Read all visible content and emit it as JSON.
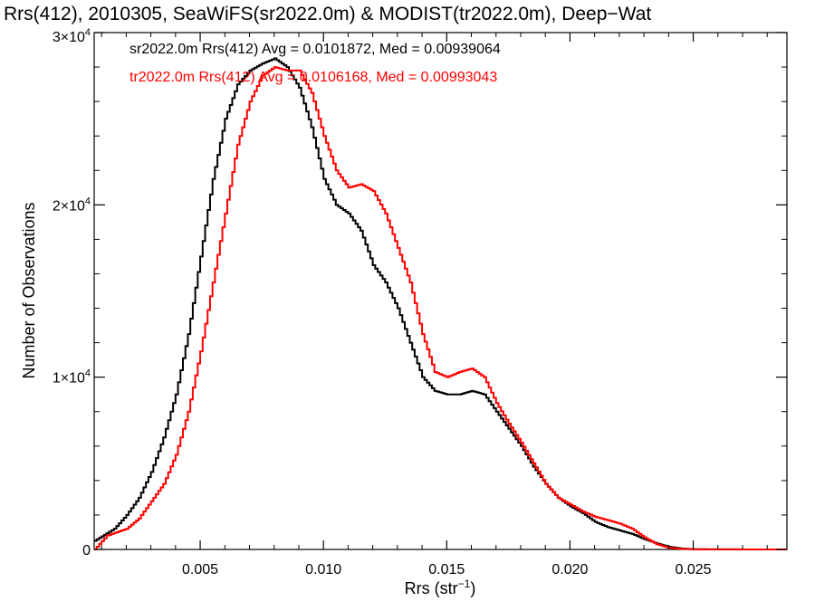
{
  "chart_data": {
    "type": "line",
    "style": "step",
    "title": "Rrs(412), 2010305, SeaWiFS(sr2022.0m) & MODIST(tr2022.0m), Deep−Wat",
    "xlabel": "Rrs (str",
    "xlabel_sup": "−1",
    "xlabel_end": ")",
    "ylabel": "Number of Observations",
    "xlim": [
      0.0007,
      0.0288
    ],
    "ylim": [
      0,
      30000
    ],
    "grid": false,
    "x_ticks": [
      {
        "value": 0.005,
        "label": "0.005"
      },
      {
        "value": 0.01,
        "label": "0.010"
      },
      {
        "value": 0.015,
        "label": "0.015"
      },
      {
        "value": 0.02,
        "label": "0.020"
      },
      {
        "value": 0.025,
        "label": "0.025"
      }
    ],
    "y_ticks": [
      {
        "value": 0,
        "label": "0",
        "sup": ""
      },
      {
        "value": 10000,
        "label": "1×10",
        "sup": "4"
      },
      {
        "value": 20000,
        "label": "2×10",
        "sup": "4"
      },
      {
        "value": 30000,
        "label": "3×10",
        "sup": "4"
      }
    ],
    "annotations": [
      {
        "text": "sr2022.0m Rrs(412) Avg = 0.0101872, Med = 0.00939064",
        "color": "#000000"
      },
      {
        "text": "tr2022.0m Rrs(412) Avg = 0.0106168, Med = 0.00993043",
        "color": "#ff0000"
      }
    ],
    "series": [
      {
        "color": "#000000",
        "points": [
          [
            0.0007,
            500
          ],
          [
            0.0015,
            1200
          ],
          [
            0.002,
            2000
          ],
          [
            0.0025,
            3000
          ],
          [
            0.003,
            4500
          ],
          [
            0.0035,
            6500
          ],
          [
            0.004,
            9000
          ],
          [
            0.0045,
            12500
          ],
          [
            0.005,
            17000
          ],
          [
            0.0055,
            21500
          ],
          [
            0.006,
            25000
          ],
          [
            0.0065,
            27000
          ],
          [
            0.007,
            27800
          ],
          [
            0.0075,
            28200
          ],
          [
            0.008,
            28500
          ],
          [
            0.0085,
            28000
          ],
          [
            0.009,
            26800
          ],
          [
            0.0095,
            24500
          ],
          [
            0.01,
            21500
          ],
          [
            0.0105,
            20000
          ],
          [
            0.011,
            19500
          ],
          [
            0.0115,
            18500
          ],
          [
            0.012,
            16500
          ],
          [
            0.0125,
            15500
          ],
          [
            0.013,
            14000
          ],
          [
            0.0135,
            12000
          ],
          [
            0.014,
            10000
          ],
          [
            0.0145,
            9200
          ],
          [
            0.015,
            9000
          ],
          [
            0.0155,
            9000
          ],
          [
            0.016,
            9200
          ],
          [
            0.0165,
            9000
          ],
          [
            0.017,
            8000
          ],
          [
            0.0175,
            7000
          ],
          [
            0.018,
            6000
          ],
          [
            0.0185,
            4800
          ],
          [
            0.019,
            3800
          ],
          [
            0.0195,
            3000
          ],
          [
            0.02,
            2500
          ],
          [
            0.0205,
            2100
          ],
          [
            0.021,
            1600
          ],
          [
            0.0215,
            1300
          ],
          [
            0.022,
            1100
          ],
          [
            0.0225,
            900
          ],
          [
            0.023,
            600
          ],
          [
            0.0235,
            350
          ],
          [
            0.024,
            150
          ],
          [
            0.0245,
            50
          ],
          [
            0.025,
            15
          ],
          [
            0.026,
            5
          ],
          [
            0.0288,
            0
          ]
        ]
      },
      {
        "color": "#ff0000",
        "points": [
          [
            0.0007,
            0
          ],
          [
            0.0012,
            800
          ],
          [
            0.002,
            1200
          ],
          [
            0.0025,
            1800
          ],
          [
            0.003,
            2800
          ],
          [
            0.0035,
            3800
          ],
          [
            0.004,
            5500
          ],
          [
            0.0045,
            8000
          ],
          [
            0.005,
            11500
          ],
          [
            0.0055,
            15500
          ],
          [
            0.006,
            19500
          ],
          [
            0.0065,
            23500
          ],
          [
            0.007,
            26000
          ],
          [
            0.0075,
            27500
          ],
          [
            0.008,
            28000
          ],
          [
            0.0085,
            27800
          ],
          [
            0.009,
            27800
          ],
          [
            0.0095,
            26500
          ],
          [
            0.01,
            24000
          ],
          [
            0.0105,
            22000
          ],
          [
            0.011,
            21000
          ],
          [
            0.0115,
            21200
          ],
          [
            0.012,
            20800
          ],
          [
            0.0125,
            19500
          ],
          [
            0.013,
            17500
          ],
          [
            0.0135,
            15500
          ],
          [
            0.014,
            12500
          ],
          [
            0.0145,
            10300
          ],
          [
            0.015,
            10000
          ],
          [
            0.0155,
            10300
          ],
          [
            0.016,
            10500
          ],
          [
            0.0165,
            10000
          ],
          [
            0.017,
            8500
          ],
          [
            0.0175,
            7300
          ],
          [
            0.018,
            6200
          ],
          [
            0.0185,
            5000
          ],
          [
            0.019,
            3800
          ],
          [
            0.0195,
            3000
          ],
          [
            0.02,
            2600
          ],
          [
            0.0205,
            2200
          ],
          [
            0.021,
            1900
          ],
          [
            0.0215,
            1700
          ],
          [
            0.022,
            1500
          ],
          [
            0.0225,
            1200
          ],
          [
            0.023,
            700
          ],
          [
            0.0235,
            300
          ],
          [
            0.024,
            100
          ],
          [
            0.0245,
            30
          ],
          [
            0.025,
            10
          ],
          [
            0.026,
            5
          ],
          [
            0.0288,
            0
          ]
        ]
      }
    ]
  }
}
